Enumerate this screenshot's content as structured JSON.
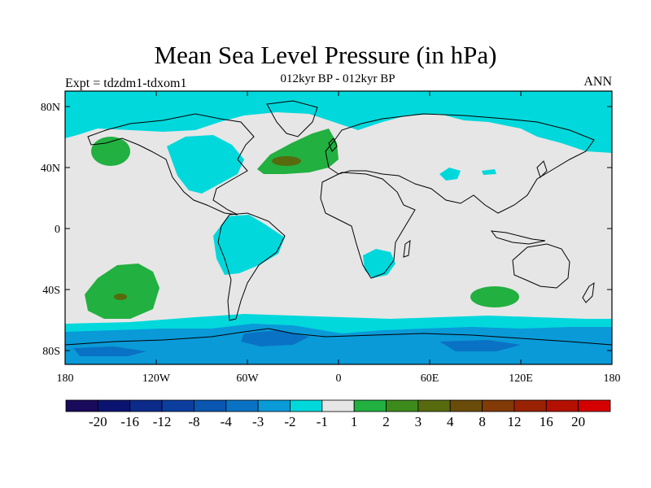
{
  "title": "Mean Sea Level Pressure (in hPa)",
  "subtitle": "012kyr BP - 012kyr BP",
  "left_label": "Expt = tdzdm1-tdxom1",
  "right_label": "ANN",
  "lat_ticks": [
    "80N",
    "40N",
    "0",
    "40S",
    "80S"
  ],
  "lon_ticks": [
    "180",
    "120W",
    "60W",
    "0",
    "60E",
    "120E",
    "180"
  ],
  "colorbar": {
    "colors": [
      "#1a0a5c",
      "#0a1470",
      "#0c2a8a",
      "#0c3ea0",
      "#0a56b0",
      "#0a72c4",
      "#0a9ad8",
      "#00d8dc",
      "#e6e6e6",
      "#22b040",
      "#3d8a1c",
      "#586a0e",
      "#6a4c0a",
      "#823a06",
      "#9a2204",
      "#b41002",
      "#d40000"
    ],
    "labels": [
      "-20",
      "-16",
      "-12",
      "-8",
      "-4",
      "-3",
      "-2",
      "-1",
      "1",
      "2",
      "3",
      "4",
      "8",
      "12",
      "16",
      "20"
    ]
  },
  "palette": {
    "background": "#e6e6e6",
    "neg1": "#00d8dc",
    "neg2": "#0a9ad8",
    "neg3": "#0a72c4",
    "pos1": "#22b040",
    "pos2": "#586a0e"
  }
}
